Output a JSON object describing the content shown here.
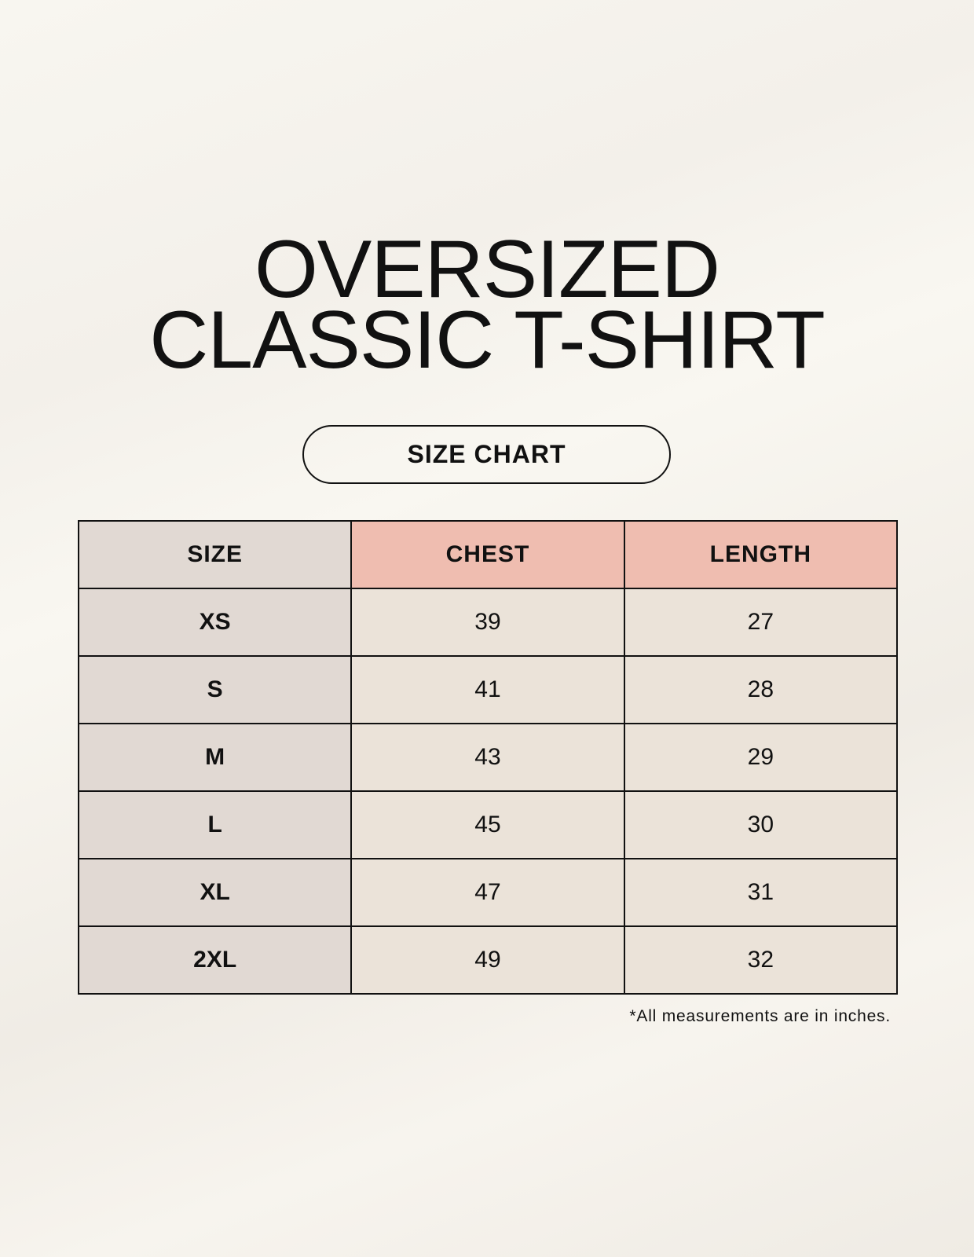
{
  "title": {
    "line1": "OVERSIZED",
    "line2": "CLASSIC T-SHIRT"
  },
  "badge": "SIZE CHART",
  "table": {
    "headers": [
      "SIZE",
      "CHEST",
      "LENGTH"
    ],
    "rows": [
      [
        "XS",
        "39",
        "27"
      ],
      [
        "S",
        "41",
        "28"
      ],
      [
        "M",
        "43",
        "29"
      ],
      [
        "L",
        "45",
        "30"
      ],
      [
        "XL",
        "47",
        "31"
      ],
      [
        "2XL",
        "49",
        "32"
      ]
    ]
  },
  "footnote": "*All measurements are in inches.",
  "colors": {
    "size_column": "#e1d9d3",
    "header_accent": "#efbdb0",
    "cell": "#ebe3d9"
  }
}
